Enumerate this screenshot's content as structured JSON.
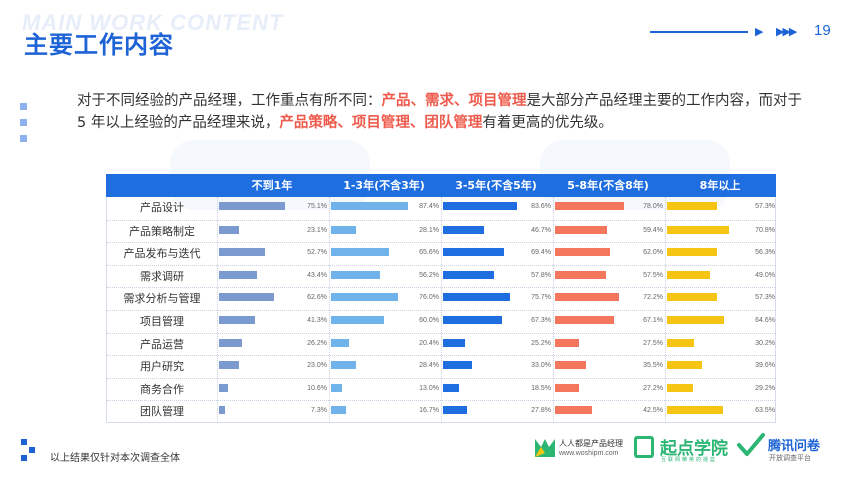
{
  "header": {
    "watermark": "MAIN WORK CONTENT",
    "title": "主要工作内容",
    "page_number": "19"
  },
  "intro": {
    "part1": "对于不同经验的产品经理，工作重点有所不同：",
    "highlight1": "产品、需求、项目管理",
    "part2": "是大部分产品经理主要的工作内容，而对于 5 年以上经验的产品经理来说，",
    "highlight2": "产品策略、项目管理、团队管理",
    "part3": "有着更高的优先级。"
  },
  "table": {
    "corner": "",
    "columns": [
      "不到1年",
      "1-3年(不含3年)",
      "3-5年(不含5年)",
      "5-8年(不含8年)",
      "8年以上"
    ],
    "colors": [
      "#7b9bd0",
      "#6fb3ea",
      "#1e6ee0",
      "#f4765d",
      "#f6c413"
    ],
    "rows": [
      {
        "label": "产品设计",
        "values": [
          "75.1%",
          "87.4%",
          "83.6%",
          "78.0%",
          "57.3%"
        ]
      },
      {
        "label": "产品策略制定",
        "values": [
          "23.1%",
          "28.1%",
          "46.7%",
          "59.4%",
          "70.8%"
        ]
      },
      {
        "label": "产品发布与迭代",
        "values": [
          "52.7%",
          "65.6%",
          "69.4%",
          "62.0%",
          "56.3%"
        ]
      },
      {
        "label": "需求调研",
        "values": [
          "43.4%",
          "56.2%",
          "57.8%",
          "57.5%",
          "49.0%"
        ]
      },
      {
        "label": "需求分析与管理",
        "values": [
          "62.6%",
          "76.0%",
          "75.7%",
          "72.2%",
          "57.3%"
        ]
      },
      {
        "label": "项目管理",
        "values": [
          "41.3%",
          "60.0%",
          "67.3%",
          "67.1%",
          "64.6%"
        ]
      },
      {
        "label": "产品运营",
        "values": [
          "26.2%",
          "20.4%",
          "25.2%",
          "27.5%",
          "30.2%"
        ]
      },
      {
        "label": "用户研究",
        "values": [
          "23.0%",
          "28.4%",
          "33.0%",
          "35.5%",
          "39.6%"
        ]
      },
      {
        "label": "商务合作",
        "values": [
          "10.6%",
          "13.0%",
          "18.5%",
          "27.2%",
          "29.2%"
        ]
      },
      {
        "label": "团队管理",
        "values": [
          "7.3%",
          "16.7%",
          "27.8%",
          "42.5%",
          "63.5%"
        ]
      }
    ]
  },
  "footnote": "以上结果仅针对本次调查全体",
  "logos": {
    "pm_name": "人人都是产品经理",
    "pm_url": "www.woshipm.com",
    "qidian_name": "起点学院",
    "qidian_sub": "互联网精英的摇篮",
    "tencent_name": "腾讯问卷",
    "tencent_sub": "开放调查平台"
  }
}
